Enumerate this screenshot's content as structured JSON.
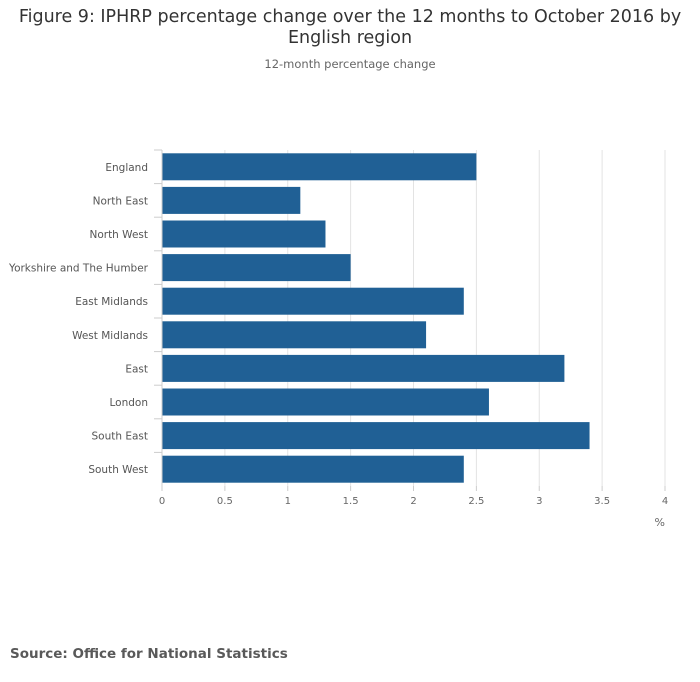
{
  "title": "Figure 9: IPHRP percentage change over the 12 months to October 2016 by English region",
  "subtitle": "12-month percentage change",
  "source": "Source: Office for National Statistics",
  "chart_data": {
    "type": "bar",
    "orientation": "horizontal",
    "title": "Figure 9: IPHRP percentage change over the 12 months to October 2016 by English region",
    "subtitle": "12-month percentage change",
    "xlabel": "%",
    "ylabel": "",
    "xlim": [
      0,
      4
    ],
    "x_ticks": [
      "0",
      "0.5",
      "1",
      "1.5",
      "2",
      "2.5",
      "3",
      "3.5",
      "4"
    ],
    "categories": [
      "England",
      "North East",
      "North West",
      "Yorkshire and The Humber",
      "East Midlands",
      "West Midlands",
      "East",
      "London",
      "South East",
      "South West"
    ],
    "values": [
      2.5,
      1.1,
      1.3,
      1.5,
      2.4,
      2.1,
      3.2,
      2.6,
      3.4,
      2.4
    ],
    "grid": true,
    "bar_color": "#206095"
  }
}
